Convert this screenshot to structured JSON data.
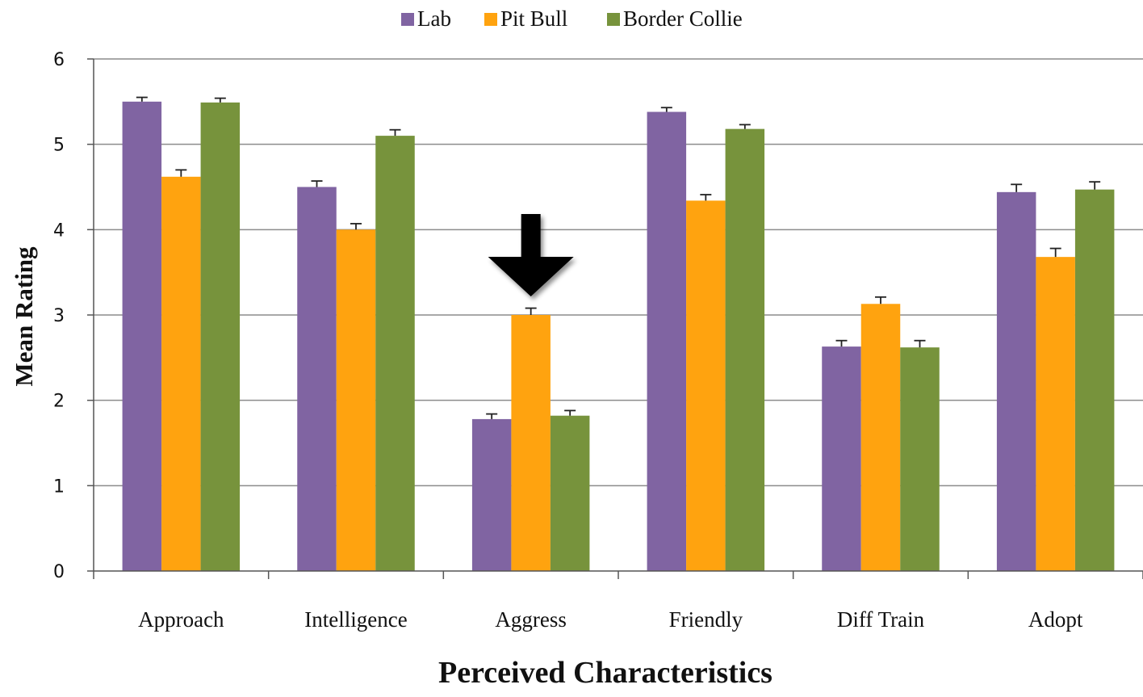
{
  "chart_data": {
    "type": "bar",
    "categories": [
      "Approach",
      "Intelligence",
      "Aggress",
      "Friendly",
      "Diff Train",
      "Adopt"
    ],
    "series": [
      {
        "name": "Lab",
        "color": "#8064A2",
        "values": [
          5.5,
          4.5,
          1.78,
          5.38,
          2.63,
          4.44
        ],
        "errors": [
          0.05,
          0.07,
          0.06,
          0.05,
          0.07,
          0.09
        ]
      },
      {
        "name": "Pit Bull",
        "color": "#FFA30F",
        "values": [
          4.62,
          4.0,
          3.0,
          4.34,
          3.13,
          3.68
        ],
        "errors": [
          0.08,
          0.07,
          0.08,
          0.07,
          0.08,
          0.1
        ]
      },
      {
        "name": "Border Collie",
        "color": "#77933C",
        "values": [
          5.49,
          5.1,
          1.82,
          5.18,
          2.62,
          4.47
        ],
        "errors": [
          0.05,
          0.07,
          0.06,
          0.05,
          0.08,
          0.09
        ]
      }
    ],
    "xlabel": "Perceived Characteristics",
    "ylabel": "Mean Rating",
    "ylim": [
      0,
      6
    ],
    "yticks": [
      "0",
      "1",
      "2",
      "3",
      "4",
      "5",
      "6"
    ],
    "grid": true,
    "legend": "top-center",
    "annotation": {
      "type": "arrow",
      "target_category": "Aggress",
      "target_series": "Pit Bull"
    }
  }
}
